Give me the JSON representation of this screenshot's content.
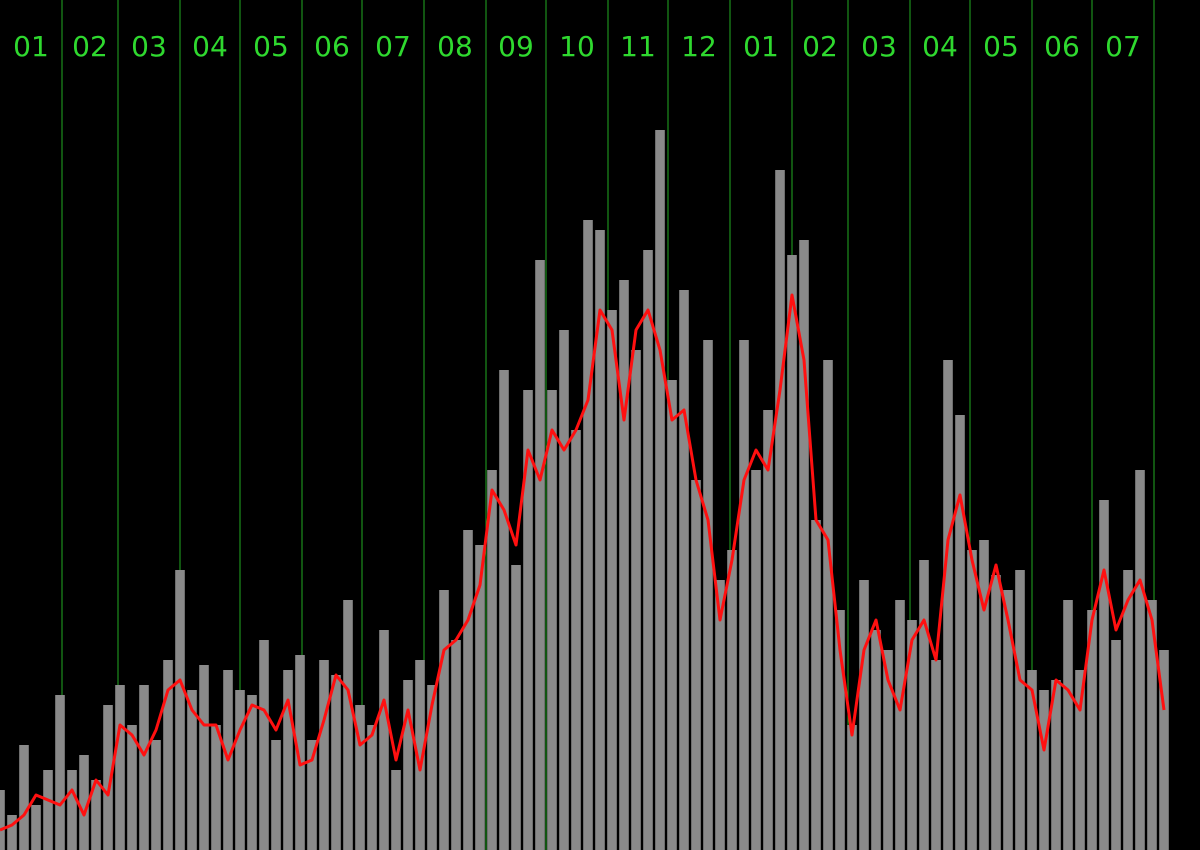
{
  "chart_data": {
    "type": "bar",
    "months": {
      "labels": [
        "01",
        "02",
        "03",
        "04",
        "05",
        "06",
        "07",
        "08",
        "09",
        "10",
        "11",
        "12",
        "01",
        "02",
        "03",
        "04",
        "05",
        "06",
        "07"
      ],
      "bounds": [
        0,
        31,
        59,
        90,
        120,
        151,
        181,
        212,
        243,
        273,
        304,
        334,
        365,
        396,
        424,
        455,
        485,
        516,
        546,
        577
      ],
      "color": "#2fd92f",
      "line_color": "#22aa22"
    },
    "xlim": [
      0,
      600
    ],
    "ylim": [
      0,
      850
    ],
    "x": [
      0,
      6,
      12,
      18,
      24,
      30,
      36,
      42,
      48,
      54,
      60,
      66,
      72,
      78,
      84,
      90,
      96,
      102,
      108,
      114,
      120,
      126,
      132,
      138,
      144,
      150,
      156,
      162,
      168,
      174,
      180,
      186,
      192,
      198,
      204,
      210,
      216,
      222,
      228,
      234,
      240,
      246,
      252,
      258,
      264,
      270,
      276,
      282,
      288,
      294,
      300,
      306,
      312,
      318,
      324,
      330,
      336,
      342,
      348,
      354,
      360,
      366,
      372,
      378,
      384,
      390,
      396,
      402,
      408,
      414,
      420,
      426,
      432,
      438,
      444,
      450,
      456,
      462,
      468,
      474,
      480,
      486,
      492,
      498,
      504,
      510,
      516,
      522,
      528,
      534,
      540,
      546,
      552,
      558,
      564,
      570,
      576,
      582
    ],
    "series": [
      {
        "type": "bar",
        "color": "#8a8a8a",
        "values": [
          60,
          35,
          105,
          45,
          80,
          155,
          80,
          95,
          70,
          145,
          165,
          125,
          165,
          110,
          190,
          280,
          160,
          185,
          125,
          180,
          160,
          155,
          210,
          110,
          180,
          195,
          110,
          190,
          175,
          250,
          145,
          125,
          220,
          80,
          170,
          190,
          165,
          260,
          210,
          320,
          305,
          380,
          480,
          285,
          460,
          590,
          460,
          520,
          420,
          630,
          620,
          540,
          570,
          500,
          600,
          720,
          470,
          560,
          370,
          510,
          270,
          300,
          510,
          380,
          440,
          680,
          595,
          610,
          330,
          490,
          240,
          125,
          270,
          220,
          200,
          250,
          230,
          290,
          190,
          490,
          435,
          300,
          310,
          275,
          260,
          280,
          180,
          160,
          170,
          250,
          180,
          240,
          350,
          210,
          280,
          380,
          250,
          200
        ]
      },
      {
        "type": "line",
        "color": "#ff1010",
        "values": [
          20,
          25,
          35,
          55,
          50,
          45,
          60,
          35,
          70,
          55,
          125,
          115,
          95,
          120,
          160,
          170,
          140,
          125,
          125,
          90,
          120,
          145,
          140,
          120,
          150,
          85,
          90,
          130,
          175,
          160,
          105,
          115,
          150,
          90,
          140,
          80,
          145,
          200,
          210,
          230,
          265,
          360,
          340,
          305,
          400,
          370,
          420,
          400,
          420,
          450,
          540,
          520,
          430,
          520,
          540,
          500,
          430,
          440,
          370,
          330,
          230,
          290,
          370,
          400,
          380,
          460,
          555,
          490,
          330,
          310,
          200,
          115,
          200,
          230,
          170,
          140,
          210,
          230,
          190,
          310,
          355,
          290,
          240,
          285,
          230,
          170,
          160,
          100,
          170,
          160,
          140,
          230,
          280,
          220,
          250,
          270,
          230,
          140
        ]
      }
    ]
  }
}
